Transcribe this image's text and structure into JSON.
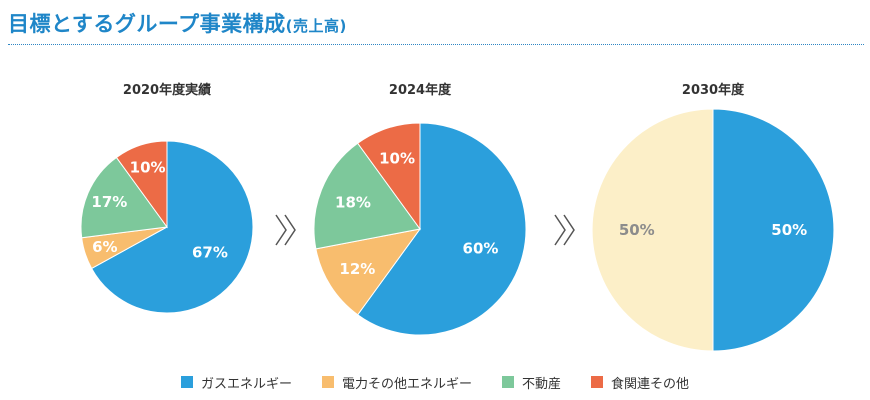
{
  "title": {
    "main": "目標とするグループ事業構成",
    "sub": "(売上高)"
  },
  "colors": {
    "gas_energy": "#2b9fdc",
    "power_other_energy": "#f8bd6e",
    "real_estate": "#7dc89b",
    "food_other": "#ec6b46",
    "target_other": "#fcefc8",
    "arrow": "#555555"
  },
  "legend": [
    {
      "label": "ガスエネルギー",
      "color": "#2b9fdc"
    },
    {
      "label": "電力その他エネルギー",
      "color": "#f8bd6e"
    },
    {
      "label": "不動産",
      "color": "#7dc89b"
    },
    {
      "label": "食関連その他",
      "color": "#ec6b46"
    }
  ],
  "chart_data": [
    {
      "type": "pie",
      "title": "2020年度実績",
      "slices": [
        {
          "name": "ガスエネルギー",
          "value": 67,
          "label": "67%",
          "color": "#2b9fdc",
          "label_color": "#ffffff"
        },
        {
          "name": "電力その他エネルギー",
          "value": 6,
          "label": "6%",
          "color": "#f8bd6e",
          "label_color": "#ffffff"
        },
        {
          "name": "不動産",
          "value": 17,
          "label": "17%",
          "color": "#7dc89b",
          "label_color": "#ffffff"
        },
        {
          "name": "食関連その他",
          "value": 10,
          "label": "10%",
          "color": "#ec6b46",
          "label_color": "#ffffff"
        }
      ]
    },
    {
      "type": "pie",
      "title": "2024年度",
      "slices": [
        {
          "name": "ガスエネルギー",
          "value": 60,
          "label": "60%",
          "color": "#2b9fdc",
          "label_color": "#ffffff"
        },
        {
          "name": "電力その他エネルギー",
          "value": 12,
          "label": "12%",
          "color": "#f8bd6e",
          "label_color": "#ffffff"
        },
        {
          "name": "不動産",
          "value": 18,
          "label": "18%",
          "color": "#7dc89b",
          "label_color": "#ffffff"
        },
        {
          "name": "食関連その他",
          "value": 10,
          "label": "10%",
          "color": "#ec6b46",
          "label_color": "#ffffff"
        }
      ]
    },
    {
      "type": "pie",
      "title": "2030年度",
      "slices": [
        {
          "name": "ガスエネルギー",
          "value": 50,
          "label": "50%",
          "color": "#2b9fdc",
          "label_color": "#ffffff"
        },
        {
          "name": "",
          "value": 50,
          "label": "50%",
          "color": "#fcefc8",
          "label_color": "#8c8c8c"
        }
      ]
    }
  ]
}
